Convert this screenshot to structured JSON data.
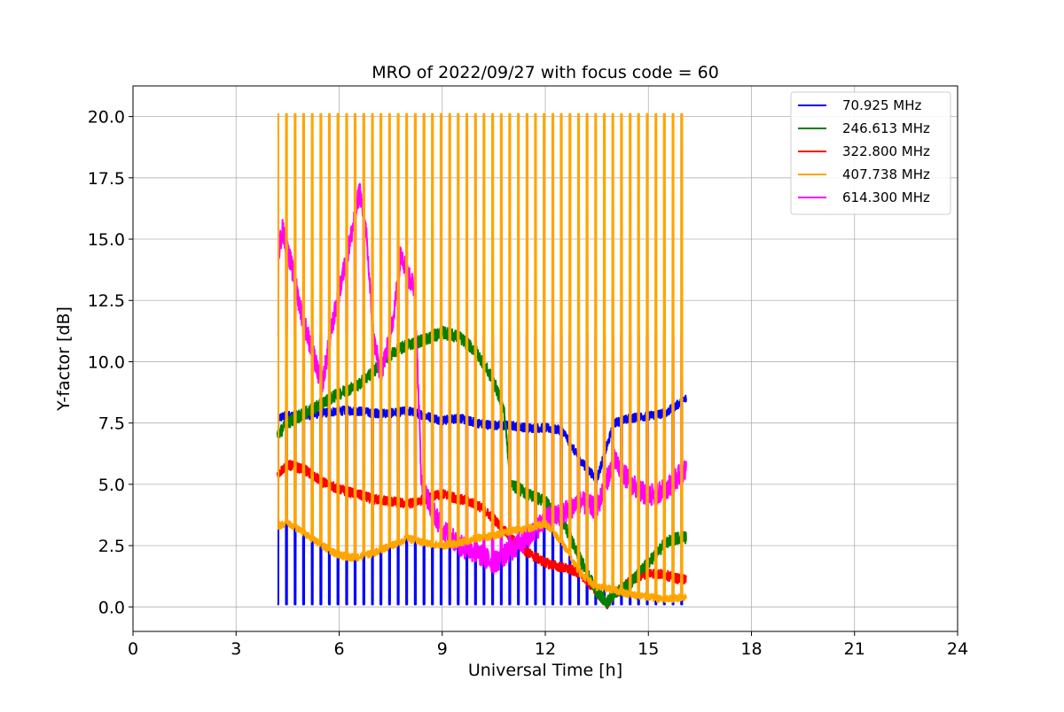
{
  "chart_data": {
    "type": "line",
    "title": "MRO of 2022/09/27 with focus code = 60",
    "xlabel": "Universal Time [h]",
    "ylabel": "Y-factor [dB]",
    "xlim": [
      0,
      24
    ],
    "ylim": [
      -1.0,
      21.25
    ],
    "xticks": [
      0,
      3,
      6,
      9,
      12,
      15,
      18,
      21,
      24
    ],
    "xtick_labels": [
      "0",
      "3",
      "6",
      "9",
      "12",
      "15",
      "18",
      "21",
      "24"
    ],
    "yticks": [
      0.0,
      2.5,
      5.0,
      7.5,
      10.0,
      12.5,
      15.0,
      17.5,
      20.0
    ],
    "ytick_labels": [
      "0.0",
      "2.5",
      "5.0",
      "7.5",
      "10.0",
      "12.5",
      "15.0",
      "17.5",
      "20.0"
    ],
    "grid": true,
    "legend_position": "top-right",
    "calibration_pulses": {
      "start_h": 4.2,
      "end_h": 16.0,
      "period_h": 0.25
    },
    "series": [
      {
        "name": " 70.925 MHz",
        "color": "#0000ff",
        "pulse_low": 0.1,
        "x": [
          4.2,
          4.5,
          5.0,
          5.5,
          6.0,
          6.5,
          7.0,
          7.5,
          8.0,
          8.5,
          9.0,
          9.5,
          10.0,
          10.5,
          11.0,
          11.5,
          12.0,
          12.5,
          13.0,
          13.5,
          14.0,
          14.5,
          15.0,
          15.5,
          16.0,
          16.1
        ],
        "y": [
          7.7,
          7.8,
          7.8,
          7.9,
          8.0,
          8.0,
          7.9,
          7.9,
          8.0,
          7.8,
          7.6,
          7.7,
          7.5,
          7.4,
          7.4,
          7.3,
          7.3,
          7.2,
          6.0,
          5.2,
          7.5,
          7.7,
          7.8,
          7.9,
          8.4,
          8.5
        ]
      },
      {
        "name": "246.613 MHz",
        "color": "#008000",
        "x": [
          4.2,
          4.5,
          5.0,
          5.5,
          6.0,
          6.5,
          7.0,
          7.5,
          8.0,
          8.5,
          9.0,
          9.5,
          10.0,
          10.5,
          10.8,
          11.0,
          11.5,
          12.0,
          12.5,
          13.0,
          13.5,
          13.8,
          14.0,
          14.5,
          15.0,
          15.5,
          16.0,
          16.1
        ],
        "y": [
          7.0,
          7.5,
          7.9,
          8.3,
          8.7,
          9.0,
          9.6,
          10.3,
          10.7,
          10.9,
          11.2,
          11.0,
          10.4,
          9.2,
          8.0,
          5.0,
          4.6,
          4.3,
          3.5,
          2.0,
          0.6,
          0.2,
          0.5,
          1.0,
          1.8,
          2.6,
          2.9,
          2.8
        ]
      },
      {
        "name": "322.800 MHz",
        "color": "#ff0000",
        "x": [
          4.2,
          4.5,
          5.0,
          5.5,
          6.0,
          6.5,
          7.0,
          7.5,
          8.0,
          8.5,
          9.0,
          9.5,
          10.0,
          10.5,
          11.0,
          11.5,
          12.0,
          12.5,
          13.0,
          13.5,
          13.8,
          14.0,
          14.5,
          15.0,
          15.5,
          16.0,
          16.1
        ],
        "y": [
          5.4,
          5.8,
          5.6,
          5.1,
          4.8,
          4.6,
          4.4,
          4.3,
          4.2,
          4.4,
          4.6,
          4.4,
          4.2,
          3.6,
          2.8,
          2.2,
          1.8,
          1.6,
          1.4,
          0.6,
          0.1,
          0.5,
          1.1,
          1.4,
          1.3,
          1.1,
          1.2
        ]
      },
      {
        "name": "407.738 MHz",
        "color": "#ffa500",
        "pulse_high": 20.1,
        "x": [
          4.2,
          4.5,
          5.0,
          5.5,
          6.0,
          6.5,
          7.0,
          7.5,
          8.0,
          8.5,
          9.0,
          9.5,
          10.0,
          10.5,
          11.0,
          11.5,
          12.0,
          12.5,
          13.0,
          13.5,
          14.0,
          14.5,
          15.0,
          15.5,
          16.0,
          16.1
        ],
        "y": [
          3.3,
          3.4,
          3.0,
          2.5,
          2.1,
          2.0,
          2.2,
          2.5,
          2.8,
          2.6,
          2.5,
          2.6,
          2.8,
          2.9,
          3.1,
          3.2,
          3.4,
          2.6,
          1.4,
          0.8,
          0.7,
          0.5,
          0.4,
          0.3,
          0.4,
          0.4
        ]
      },
      {
        "name": "614.300 MHz",
        "color": "#ff00ff",
        "pulse_high": 11.1,
        "x": [
          4.2,
          4.35,
          4.6,
          4.9,
          5.2,
          5.5,
          5.8,
          6.1,
          6.4,
          6.6,
          6.8,
          7.0,
          7.2,
          7.4,
          7.6,
          7.8,
          8.0,
          8.2,
          8.4,
          8.7,
          9.0,
          9.5,
          10.0,
          10.5,
          11.0,
          11.5,
          12.0,
          12.5,
          13.0,
          13.5,
          14.0,
          14.5,
          15.0,
          15.5,
          16.0,
          16.1
        ],
        "y": [
          14.2,
          15.4,
          14.0,
          12.0,
          10.5,
          9.0,
          11.5,
          13.5,
          15.5,
          17.0,
          15.0,
          11.0,
          9.5,
          10.5,
          12.0,
          14.5,
          13.5,
          13.0,
          5.0,
          4.0,
          3.2,
          2.5,
          2.2,
          1.8,
          2.3,
          2.8,
          3.6,
          3.8,
          4.3,
          4.0,
          6.0,
          5.0,
          4.5,
          4.8,
          5.5,
          5.6
        ]
      }
    ]
  }
}
